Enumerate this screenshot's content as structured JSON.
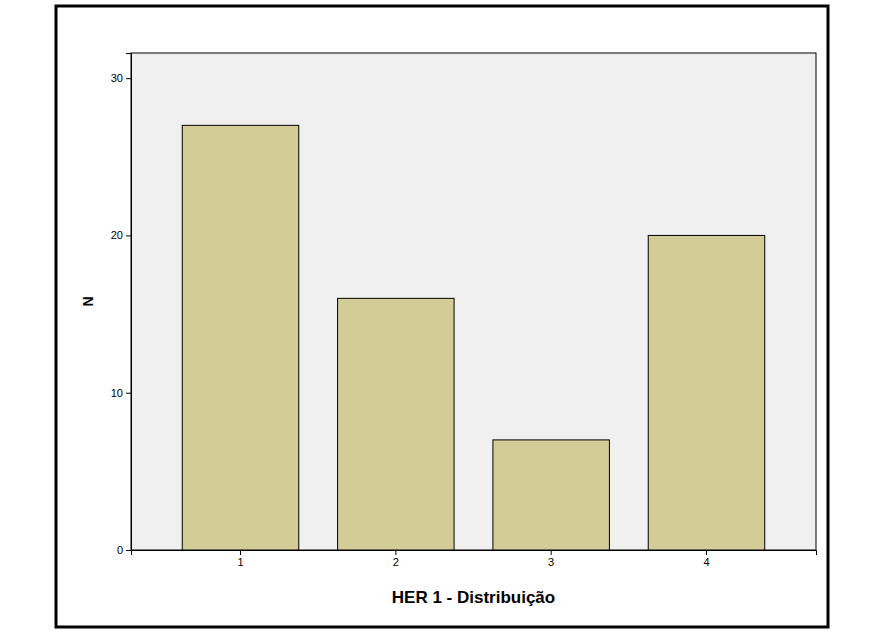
{
  "chart_data": {
    "type": "bar",
    "x_label": "HER 1 - Distribuição",
    "y_label": "N",
    "categories": [
      "1",
      "2",
      "3",
      "4"
    ],
    "values": [
      27,
      16,
      7,
      20
    ],
    "color": "#d3cc96",
    "ylim": [
      0,
      31.6
    ],
    "yticks": [
      0,
      10,
      20,
      30
    ],
    "grid": false
  }
}
